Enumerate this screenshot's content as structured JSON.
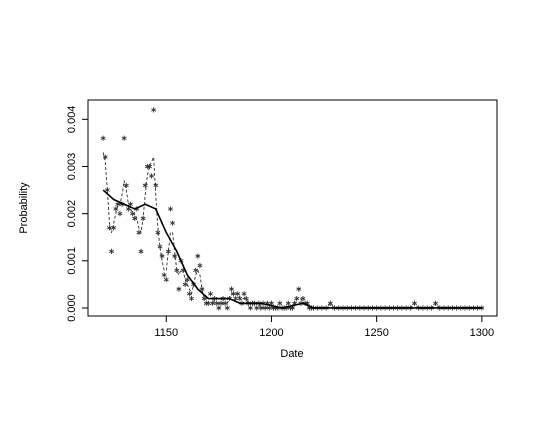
{
  "chart_data": {
    "type": "line",
    "x_label": "Date",
    "y_label": "Probability",
    "xlim": [
      1112.8,
      1307.2
    ],
    "ylim": [
      -0.00017,
      0.00441
    ],
    "xticks": [
      1150,
      1200,
      1250,
      1300
    ],
    "yticks": [
      {
        "value": 0,
        "label": "0.000"
      },
      {
        "value": 0.001,
        "label": "0.001"
      },
      {
        "value": 0.002,
        "label": "0.002"
      },
      {
        "value": 0.003,
        "label": "0.003"
      },
      {
        "value": 0.004,
        "label": "0.004"
      }
    ],
    "series": [
      {
        "style": "points",
        "color": "#333333",
        "x": [
          1120,
          1121,
          1122,
          1123,
          1124,
          1125,
          1126,
          1127,
          1128,
          1129,
          1130,
          1131,
          1132,
          1133,
          1134,
          1135,
          1136,
          1137,
          1138,
          1139,
          1140,
          1141,
          1142,
          1143,
          1144,
          1145,
          1146,
          1147,
          1148,
          1149,
          1150,
          1151,
          1152,
          1153,
          1154,
          1155,
          1156,
          1157,
          1158,
          1159,
          1160,
          1161,
          1162,
          1163,
          1164,
          1165,
          1166,
          1167,
          1168,
          1169,
          1170,
          1171,
          1172,
          1173,
          1174,
          1175,
          1176,
          1177,
          1178,
          1179,
          1180,
          1181,
          1182,
          1183,
          1184,
          1185,
          1186,
          1187,
          1188,
          1189,
          1190,
          1191,
          1192,
          1193,
          1194,
          1195,
          1196,
          1197,
          1198,
          1199,
          1200,
          1201,
          1202,
          1203,
          1204,
          1205,
          1206,
          1207,
          1208,
          1209,
          1210,
          1211,
          1212,
          1213,
          1214,
          1215,
          1216,
          1217,
          1218,
          1219,
          1220,
          1222,
          1224,
          1226,
          1228,
          1230,
          1232,
          1234,
          1236,
          1238,
          1240,
          1242,
          1244,
          1246,
          1248,
          1250,
          1252,
          1254,
          1256,
          1258,
          1260,
          1262,
          1264,
          1266,
          1268,
          1270,
          1272,
          1274,
          1276,
          1278,
          1280,
          1282,
          1284,
          1286,
          1288,
          1290,
          1292,
          1294,
          1296,
          1298,
          1300
        ],
        "values": [
          0.0036,
          0.0032,
          0.0025,
          0.0017,
          0.0012,
          0.0017,
          0.0021,
          0.0022,
          0.002,
          0.0022,
          0.0036,
          0.0026,
          0.0021,
          0.0022,
          0.002,
          0.0019,
          0.0021,
          0.0016,
          0.0012,
          0.0019,
          0.0026,
          0.003,
          0.003,
          0.0028,
          0.0042,
          0.0026,
          0.0016,
          0.0013,
          0.0011,
          0.0007,
          0.0006,
          0.0012,
          0.0021,
          0.0018,
          0.0011,
          0.0008,
          0.0004,
          0.001,
          0.0008,
          0.0005,
          0.0006,
          0.0003,
          0.0002,
          0.0005,
          0.0008,
          0.0011,
          0.0009,
          0.0004,
          0.0002,
          0.0001,
          0.0001,
          0.0003,
          0.0001,
          0.0002,
          0.0001,
          0,
          0.0001,
          0.0002,
          0.0001,
          0,
          0.0002,
          0.0004,
          0.0003,
          0.0002,
          0.0003,
          0.0002,
          0.0001,
          0.0003,
          0.0002,
          0.0001,
          0,
          0.0001,
          0.0001,
          0,
          0.0001,
          0,
          0.0001,
          0,
          0.0001,
          0,
          0.0001,
          0,
          0,
          0,
          0.0001,
          0,
          0,
          0,
          0.0001,
          0,
          0,
          0.0001,
          0.0002,
          0.0004,
          0.0001,
          0.0002,
          0.0001,
          0.0001,
          0,
          0,
          0,
          0,
          0,
          0,
          0.0001,
          0,
          0,
          0,
          0,
          0,
          0,
          0,
          0,
          0,
          0,
          0,
          0,
          0,
          0,
          0,
          0,
          0,
          0,
          0,
          0.0001,
          0,
          0,
          0,
          0,
          0.0001,
          0,
          0,
          0,
          0,
          0,
          0,
          0,
          0,
          0,
          0,
          0
        ]
      },
      {
        "style": "dashed",
        "color": "#333333",
        "x": [
          1120,
          1121,
          1122,
          1123,
          1124,
          1125,
          1126,
          1127,
          1128,
          1129,
          1130,
          1131,
          1132,
          1133,
          1134,
          1135,
          1136,
          1137,
          1138,
          1139,
          1140,
          1141,
          1142,
          1143,
          1144,
          1145,
          1146,
          1147,
          1148,
          1149,
          1150,
          1151,
          1152,
          1153,
          1154,
          1155,
          1156,
          1157,
          1158,
          1159,
          1160,
          1161,
          1162,
          1163,
          1164,
          1165,
          1166,
          1167,
          1168,
          1169,
          1170,
          1171,
          1172,
          1173,
          1174,
          1175,
          1176,
          1177,
          1178,
          1179,
          1180,
          1181,
          1182,
          1183,
          1184,
          1185,
          1186,
          1187,
          1188,
          1189,
          1190,
          1191,
          1192,
          1193,
          1194,
          1195,
          1196,
          1197,
          1198,
          1199,
          1200,
          1201,
          1202,
          1203,
          1204,
          1205,
          1206,
          1207,
          1208,
          1209,
          1210,
          1211,
          1212,
          1213,
          1214,
          1215,
          1216,
          1217,
          1218,
          1219,
          1220,
          1222,
          1224,
          1226,
          1228,
          1230,
          1232,
          1234,
          1236,
          1238,
          1240,
          1242,
          1244,
          1246,
          1248,
          1250,
          1252,
          1254,
          1256,
          1258,
          1260,
          1262,
          1264,
          1266,
          1268,
          1270,
          1272,
          1274,
          1276,
          1278,
          1280,
          1282,
          1284,
          1286,
          1288,
          1290,
          1292,
          1294,
          1296,
          1298,
          1300
        ],
        "values": [
          0.0033,
          0.0031,
          0.0025,
          0.0018,
          0.0016,
          0.0018,
          0.002,
          0.0022,
          0.0022,
          0.0024,
          0.0027,
          0.0025,
          0.0022,
          0.0021,
          0.002,
          0.002,
          0.0019,
          0.0017,
          0.0016,
          0.0019,
          0.0024,
          0.0028,
          0.003,
          0.0031,
          0.0032,
          0.0024,
          0.0017,
          0.0013,
          0.001,
          0.0008,
          0.0008,
          0.0012,
          0.0016,
          0.0016,
          0.0012,
          0.0008,
          0.0007,
          0.0008,
          0.0008,
          0.0006,
          0.0005,
          0.0004,
          0.0003,
          0.0005,
          0.0007,
          0.0008,
          0.0007,
          0.0004,
          0.0002,
          0.0002,
          0.0002,
          0.0002,
          0.0002,
          0.0001,
          0.0001,
          0.0001,
          0.0001,
          0.0001,
          0.0001,
          0.0001,
          0.0002,
          0.0003,
          0.0003,
          0.0003,
          0.0003,
          0.0002,
          0.0002,
          0.0002,
          0.0002,
          0.0001,
          0.0001,
          0.0001,
          0.0001,
          0.0001,
          0.0001,
          0,
          0,
          0,
          0,
          0,
          0,
          0,
          0,
          0,
          0,
          0,
          0,
          0,
          0,
          0,
          0,
          0.0001,
          0.0002,
          0.0002,
          0.0002,
          0.0001,
          0.0001,
          0.0001,
          0,
          0,
          0,
          0,
          0,
          0,
          0.0001,
          0,
          0,
          0,
          0,
          0,
          0,
          0,
          0,
          0,
          0,
          0,
          0,
          0,
          0,
          0,
          0,
          0,
          0,
          0,
          0.0001,
          0,
          0,
          0,
          0,
          0.0001,
          0,
          0,
          0,
          0,
          0,
          0,
          0,
          0,
          0,
          0,
          0
        ]
      },
      {
        "style": "solid",
        "color": "#000000",
        "x": [
          1120,
          1125,
          1130,
          1135,
          1140,
          1145,
          1150,
          1155,
          1160,
          1165,
          1170,
          1175,
          1180,
          1185,
          1190,
          1195,
          1200,
          1205,
          1210,
          1215,
          1220,
          1225,
          1230,
          1235,
          1240,
          1245,
          1250,
          1255,
          1260,
          1265,
          1270,
          1275,
          1280,
          1285,
          1290,
          1295,
          1300
        ],
        "values": [
          0.0025,
          0.0023,
          0.0022,
          0.0021,
          0.0022,
          0.0021,
          0.0016,
          0.0012,
          0.0007,
          0.0004,
          0.0002,
          0.0002,
          0.0002,
          0.0001,
          0.0001,
          0.0001,
          5e-05,
          0,
          5e-05,
          0.0001,
          0,
          0,
          0,
          0,
          0,
          0,
          0,
          0,
          0,
          0,
          0,
          0,
          0,
          0,
          0,
          0,
          0
        ]
      }
    ]
  }
}
